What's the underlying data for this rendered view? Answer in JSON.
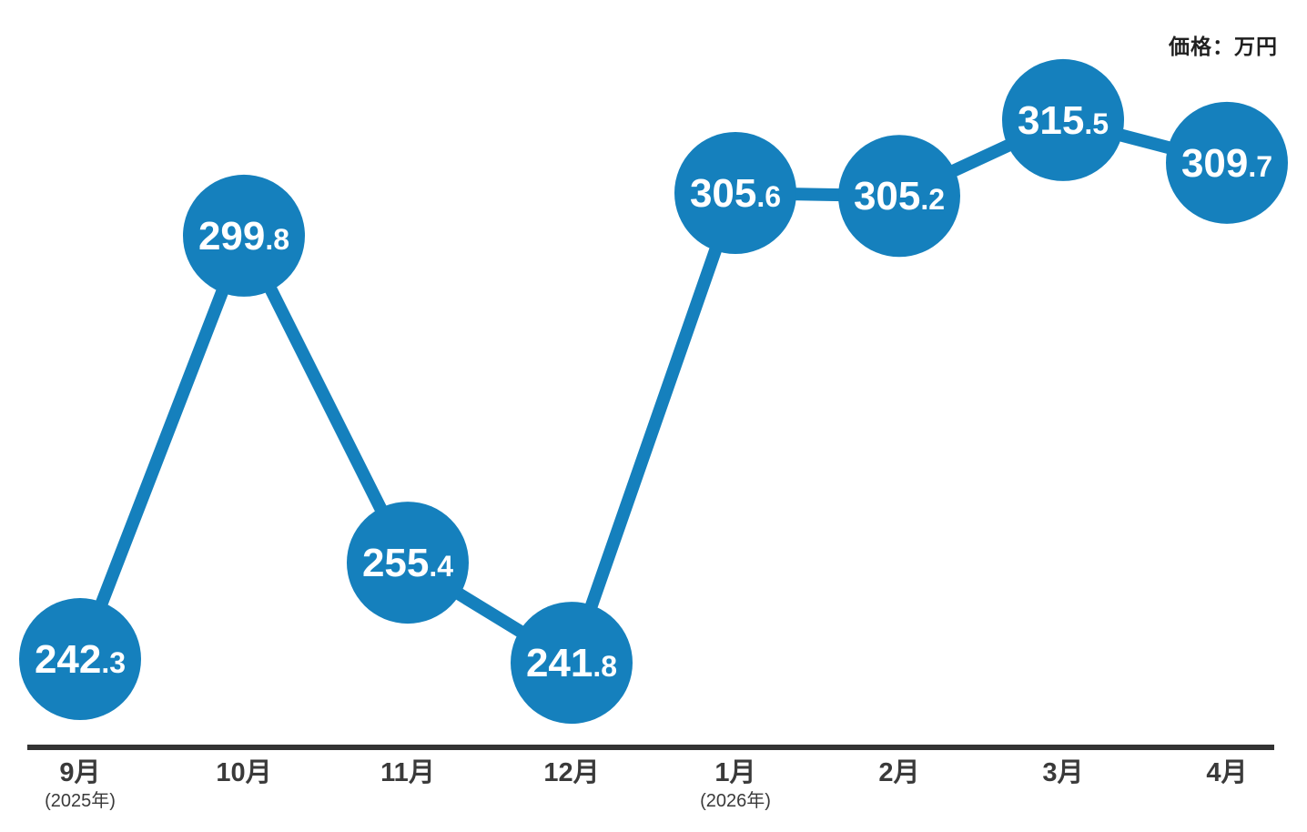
{
  "header": {
    "unit_label": "価格：万円"
  },
  "colors": {
    "accent": "#1580bd",
    "axis": "#333333",
    "tick_text": "#3a3a3a",
    "value_text": "#ffffff",
    "background": "#ffffff"
  },
  "chart_data": {
    "type": "line",
    "title": "",
    "ylabel": "価格：万円",
    "unit": "万円",
    "grid": false,
    "legend": "none",
    "marker_style": "large-circle-with-value",
    "categories": [
      "9月",
      "10月",
      "11月",
      "12月",
      "1月",
      "2月",
      "3月",
      "4月"
    ],
    "category_sublabels": [
      "(2025年)",
      "",
      "",
      "",
      "(2026年)",
      "",
      "",
      ""
    ],
    "series": [
      {
        "name": "価格",
        "values": [
          242.3,
          299.8,
          255.4,
          241.8,
          305.6,
          305.2,
          315.5,
          309.7
        ]
      }
    ],
    "ylim": [
      230,
      325
    ]
  }
}
